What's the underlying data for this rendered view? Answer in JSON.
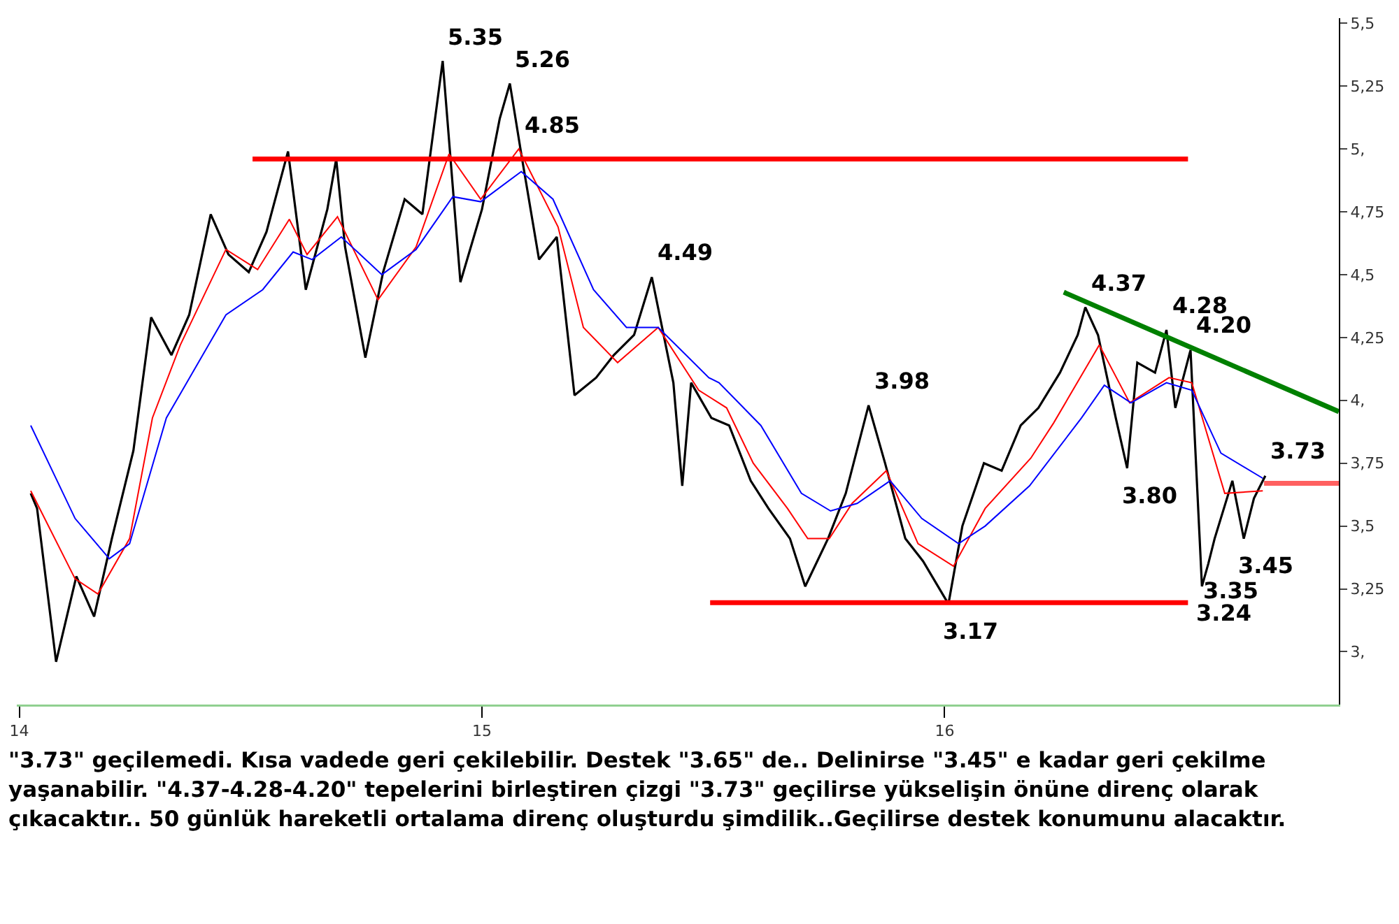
{
  "chart_data": {
    "type": "line",
    "xlim": [
      "2013-12-30",
      "2016-11-07"
    ],
    "ylim": [
      2.79,
      5.52
    ],
    "xticks": [
      {
        "value": "2014-01-01",
        "label": "14"
      },
      {
        "value": "2015-01-01",
        "label": "15"
      },
      {
        "value": "2016-01-01",
        "label": "16"
      }
    ],
    "yticks": [
      {
        "value": 3,
        "label": "3,"
      },
      {
        "value": 3.25,
        "label": "3,25"
      },
      {
        "value": 3.5,
        "label": "3,5"
      },
      {
        "value": 3.75,
        "label": "3,75"
      },
      {
        "value": 4,
        "label": "4,"
      },
      {
        "value": 4.25,
        "label": "4,25"
      },
      {
        "value": 4.5,
        "label": "4,5"
      },
      {
        "value": 4.75,
        "label": "4,75"
      },
      {
        "value": 5,
        "label": "5,"
      },
      {
        "value": 5.25,
        "label": "5,25"
      },
      {
        "value": 5.5,
        "label": "5,5"
      }
    ],
    "grid": false,
    "marker": "none",
    "line_style": "solid",
    "series": [
      {
        "color": "#000000",
        "x": [
          "2014-01-10",
          "2014-01-15",
          "2014-01-30",
          "2014-02-15",
          "2014-03-01",
          "2014-03-15",
          "2014-04-01",
          "2014-04-15",
          "2014-05-01",
          "2014-05-15",
          "2014-06-01",
          "2014-06-15",
          "2014-07-01",
          "2014-07-15",
          "2014-08-01",
          "2014-08-15",
          "2014-09-01",
          "2014-09-08",
          "2014-09-15",
          "2014-10-01",
          "2014-10-15",
          "2014-11-01",
          "2014-11-15",
          "2014-12-01",
          "2014-12-15",
          "2015-01-01",
          "2015-01-15",
          "2015-01-23",
          "2015-02-01",
          "2015-02-15",
          "2015-03-01",
          "2015-03-15",
          "2015-04-01",
          "2015-04-15",
          "2015-05-01",
          "2015-05-15",
          "2015-06-01",
          "2015-06-08",
          "2015-06-15",
          "2015-07-01",
          "2015-07-15",
          "2015-08-01",
          "2015-08-15",
          "2015-09-01",
          "2015-09-13",
          "2015-10-01",
          "2015-10-15",
          "2015-11-02",
          "2015-11-15",
          "2015-12-01",
          "2015-12-15",
          "2016-01-04",
          "2016-01-15",
          "2016-02-01",
          "2016-02-15",
          "2016-03-01",
          "2016-03-15",
          "2016-04-01",
          "2016-04-15",
          "2016-04-21",
          "2016-05-01",
          "2016-05-15",
          "2016-05-24",
          "2016-06-01",
          "2016-06-15",
          "2016-06-24",
          "2016-07-01",
          "2016-07-13",
          "2016-07-22",
          "2016-07-27",
          "2016-08-01",
          "2016-08-15",
          "2016-08-24",
          "2016-09-01",
          "2016-09-10"
        ],
        "values": [
          3.63,
          3.57,
          2.96,
          3.3,
          3.14,
          3.45,
          3.8,
          4.33,
          4.18,
          4.34,
          4.74,
          4.58,
          4.51,
          4.67,
          4.99,
          4.44,
          4.76,
          4.96,
          4.61,
          4.17,
          4.51,
          4.8,
          4.74,
          5.35,
          4.47,
          4.76,
          5.12,
          5.26,
          4.98,
          4.56,
          4.65,
          4.02,
          4.09,
          4.18,
          4.26,
          4.49,
          4.07,
          3.66,
          4.07,
          3.93,
          3.9,
          3.68,
          3.57,
          3.45,
          3.26,
          3.45,
          3.63,
          3.98,
          3.75,
          3.45,
          3.36,
          3.19,
          3.5,
          3.75,
          3.72,
          3.9,
          3.97,
          4.11,
          4.26,
          4.37,
          4.26,
          3.93,
          3.73,
          4.15,
          4.11,
          4.28,
          3.97,
          4.2,
          3.26,
          3.35,
          3.45,
          3.68,
          3.45,
          3.61,
          3.7
        ]
      },
      {
        "color": "#ff0000",
        "x": [
          "2014-01-10",
          "2014-02-14",
          "2014-03-04",
          "2014-03-29",
          "2014-04-16",
          "2014-05-08",
          "2014-06-13",
          "2014-07-08",
          "2014-08-02",
          "2014-08-16",
          "2014-09-09",
          "2014-10-11",
          "2014-11-10",
          "2014-12-06",
          "2014-12-31",
          "2015-01-30",
          "2015-03-02",
          "2015-03-22",
          "2015-04-18",
          "2015-05-20",
          "2015-06-21",
          "2015-07-13",
          "2015-08-03",
          "2015-08-30",
          "2015-09-15",
          "2015-10-02",
          "2015-10-20",
          "2015-11-16",
          "2015-12-11",
          "2016-01-08",
          "2016-02-02",
          "2016-03-09",
          "2016-03-27",
          "2016-05-02",
          "2016-05-26",
          "2016-06-26",
          "2016-07-14",
          "2016-08-09",
          "2016-09-08"
        ],
        "values": [
          3.64,
          3.29,
          3.23,
          3.45,
          3.93,
          4.22,
          4.6,
          4.52,
          4.72,
          4.58,
          4.73,
          4.4,
          4.61,
          4.98,
          4.8,
          5.0,
          4.69,
          4.29,
          4.15,
          4.29,
          4.04,
          3.97,
          3.75,
          3.57,
          3.45,
          3.45,
          3.59,
          3.72,
          3.43,
          3.34,
          3.57,
          3.77,
          3.91,
          4.22,
          3.99,
          4.09,
          4.07,
          3.63,
          3.64
        ]
      },
      {
        "color": "#0000ff",
        "x": [
          "2014-01-10",
          "2014-02-14",
          "2014-03-13",
          "2014-03-29",
          "2014-04-27",
          "2014-06-13",
          "2014-07-12",
          "2014-08-05",
          "2014-08-20",
          "2014-09-12",
          "2014-10-14",
          "2014-11-10",
          "2014-12-09",
          "2014-12-31",
          "2015-02-01",
          "2015-02-26",
          "2015-03-30",
          "2015-04-25",
          "2015-05-20",
          "2015-06-29",
          "2015-07-07",
          "2015-08-09",
          "2015-09-10",
          "2015-10-03",
          "2015-10-24",
          "2015-11-19",
          "2015-12-14",
          "2016-01-12",
          "2016-02-02",
          "2016-03-08",
          "2016-04-18",
          "2016-05-06",
          "2016-05-27",
          "2016-06-24",
          "2016-07-14",
          "2016-08-06",
          "2016-09-08"
        ],
        "values": [
          3.9,
          3.53,
          3.37,
          3.43,
          3.93,
          4.34,
          4.44,
          4.59,
          4.56,
          4.65,
          4.5,
          4.6,
          4.81,
          4.79,
          4.91,
          4.8,
          4.44,
          4.29,
          4.29,
          4.09,
          4.07,
          3.9,
          3.63,
          3.56,
          3.59,
          3.68,
          3.53,
          3.43,
          3.5,
          3.66,
          3.93,
          4.06,
          3.99,
          4.07,
          4.04,
          3.79,
          3.69
        ]
      },
      {
        "color": "#ff0000",
        "x": [
          "2014-07-04",
          "2016-07-11"
        ],
        "values": [
          4.96,
          4.96
        ]
      },
      {
        "color": "#ff0000",
        "x": [
          "2015-06-30",
          "2016-07-11"
        ],
        "values": [
          3.195,
          3.195
        ]
      },
      {
        "color": "#008000",
        "x": [
          "2016-04-04",
          "2016-11-07"
        ],
        "values": [
          4.43,
          3.955
        ]
      },
      {
        "color": "#ff6060",
        "x": [
          "2016-09-09",
          "2016-11-07"
        ],
        "values": [
          3.67,
          3.67
        ]
      }
    ],
    "annotations": [
      {
        "text": "5.35",
        "x": "2014-12-01",
        "y": 5.35
      },
      {
        "text": "5.26",
        "x": "2015-01-23",
        "y": 5.26
      },
      {
        "text": "4.85",
        "x": "2015-01-30",
        "y": 5.0
      },
      {
        "text": "4.49",
        "x": "2015-05-15",
        "y": 4.49
      },
      {
        "text": "3.98",
        "x": "2015-11-02",
        "y": 3.98
      },
      {
        "text": "4.37",
        "x": "2016-04-21",
        "y": 4.37
      },
      {
        "text": "4.28",
        "x": "2016-06-24",
        "y": 4.28
      },
      {
        "text": "4.20",
        "x": "2016-07-13",
        "y": 4.2
      },
      {
        "text": "3.73",
        "x": "2016-09-10",
        "y": 3.7
      },
      {
        "text": "3.80",
        "x": "2016-05-24",
        "y": 3.73
      },
      {
        "text": "3.45",
        "x": "2016-08-24",
        "y": 3.45
      },
      {
        "text": "3.35",
        "x": "2016-07-27",
        "y": 3.35
      },
      {
        "text": "3.17",
        "x": "2016-01-04",
        "y": 3.19
      },
      {
        "text": "3.24",
        "x": "2016-07-22",
        "y": 3.26
      },
      "\"3.73\" geçilemedi. Kısa vadede geri çekilebilir. Destek \"3.65\" de.. Delinirse \"3.45\" e kadar geri çekilme yaşanabilir. \"4.37-4.28-4.20\" tepelerini birleştiren çizgi \"3.73\" geçilirse yükselişin önüne direnç olarak çıkacaktır.. 50 günlük hareketli ortalama direnç oluşturdu şimdilik..Geçilirse destek konumunu alacaktır."
    ]
  }
}
